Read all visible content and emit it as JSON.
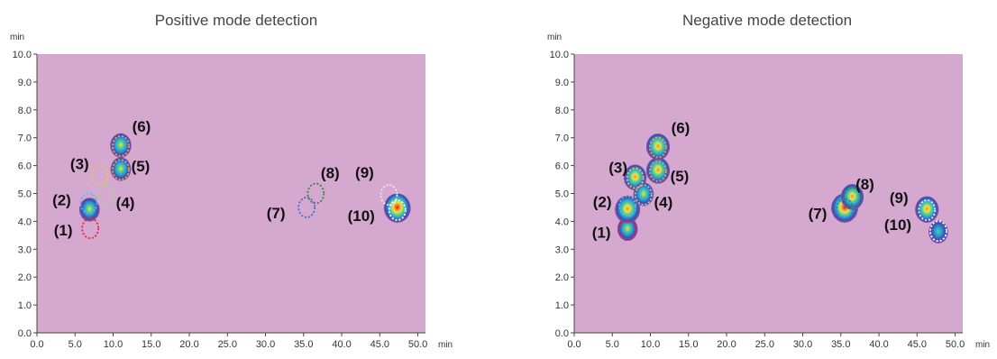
{
  "colors": {
    "background": "#d5a8cf",
    "axis": "#444444",
    "tick_text": "#333333",
    "title_text": "#444444",
    "peak_colormap": [
      "#8a4fa6",
      "#3d4fb0",
      "#2aa0d8",
      "#56d08a",
      "#f2e04a",
      "#f08a2a",
      "#cc1f1f"
    ]
  },
  "chart_data": [
    {
      "type": "heatmap",
      "title": "Positive mode detection",
      "xlabel": "min",
      "ylabel": "min",
      "xlim": [
        0,
        51
      ],
      "ylim": [
        0,
        10
      ],
      "xticks": [
        "0.0",
        "5.0",
        "10.0",
        "15.0",
        "20.0",
        "25.0",
        "30.0",
        "35.0",
        "40.0",
        "45.0",
        "50.0"
      ],
      "yticks": [
        "0.0",
        "1.0",
        "2.0",
        "3.0",
        "4.0",
        "5.0",
        "6.0",
        "7.0",
        "8.0",
        "9.0",
        "10.0"
      ],
      "grid": false,
      "peaks": [
        {
          "x": 6.9,
          "y": 4.4,
          "intensity": 0.6
        },
        {
          "x": 11.0,
          "y": 5.85,
          "intensity": 0.6
        },
        {
          "x": 11.0,
          "y": 6.7,
          "intensity": 0.65
        },
        {
          "x": 47.3,
          "y": 4.45,
          "intensity": 1.0
        }
      ],
      "annotations": [
        {
          "label": "(1)",
          "x": 7.0,
          "y": 3.75,
          "ellipse_color": "#e8262d"
        },
        {
          "label": "(2)",
          "x": 6.8,
          "y": 4.65,
          "ellipse_color": "#5ab7e6"
        },
        {
          "label": "(3)",
          "x": 8.2,
          "y": 5.65,
          "ellipse_color": "#f2c34a"
        },
        {
          "label": "(4)",
          "x": 9.0,
          "y": 4.9,
          "ellipse_color": "#9fd19a"
        },
        {
          "label": "(5)",
          "x": 11.0,
          "y": 5.85,
          "ellipse_color": "#f2a33a"
        },
        {
          "label": "(6)",
          "x": 11.0,
          "y": 6.7,
          "ellipse_color": "#f2a33a"
        },
        {
          "label": "(7)",
          "x": 35.4,
          "y": 4.5,
          "ellipse_color": "#3a6fcf"
        },
        {
          "label": "(8)",
          "x": 36.6,
          "y": 5.0,
          "ellipse_color": "#2f8a3a"
        },
        {
          "label": "(9)",
          "x": 46.2,
          "y": 4.95,
          "ellipse_color": "#eaeaea"
        },
        {
          "label": "(10)",
          "x": 47.3,
          "y": 4.4,
          "ellipse_color": "#ffffff"
        }
      ]
    },
    {
      "type": "heatmap",
      "title": "Negative mode detection",
      "xlabel": "min",
      "ylabel": "min",
      "xlim": [
        0,
        51
      ],
      "ylim": [
        0,
        10
      ],
      "xticks": [
        "0.0",
        "5.0",
        "10.0",
        "15.0",
        "20.0",
        "25.0",
        "30.0",
        "35.0",
        "40.0",
        "45.0",
        "50.0"
      ],
      "yticks": [
        "0.0",
        "1.0",
        "2.0",
        "3.0",
        "4.0",
        "5.0",
        "6.0",
        "7.0",
        "8.0",
        "9.0",
        "10.0"
      ],
      "grid": false,
      "peaks": [
        {
          "x": 7.0,
          "y": 3.7,
          "intensity": 0.6
        },
        {
          "x": 7.0,
          "y": 4.4,
          "intensity": 0.9
        },
        {
          "x": 8.0,
          "y": 5.55,
          "intensity": 0.75
        },
        {
          "x": 9.1,
          "y": 4.95,
          "intensity": 0.6
        },
        {
          "x": 11.0,
          "y": 5.8,
          "intensity": 0.8
        },
        {
          "x": 11.0,
          "y": 6.65,
          "intensity": 0.8
        },
        {
          "x": 35.5,
          "y": 4.45,
          "intensity": 1.0
        },
        {
          "x": 36.5,
          "y": 4.85,
          "intensity": 0.75
        },
        {
          "x": 46.3,
          "y": 4.4,
          "intensity": 0.8
        },
        {
          "x": 47.8,
          "y": 3.6,
          "intensity": 0.55
        }
      ],
      "annotations": [
        {
          "label": "(1)",
          "x": 7.0,
          "y": 3.7,
          "ellipse_color": "#e8262d"
        },
        {
          "label": "(2)",
          "x": 7.0,
          "y": 4.55,
          "ellipse_color": "#5ab7e6"
        },
        {
          "label": "(3)",
          "x": 8.0,
          "y": 5.55,
          "ellipse_color": "#f2c34a"
        },
        {
          "label": "(4)",
          "x": 9.1,
          "y": 4.95,
          "ellipse_color": "#9fd19a"
        },
        {
          "label": "(5)",
          "x": 11.0,
          "y": 5.8,
          "ellipse_color": "#f2a33a"
        },
        {
          "label": "(6)",
          "x": 11.0,
          "y": 6.65,
          "ellipse_color": "#f2a33a"
        },
        {
          "label": "(7)",
          "x": 35.5,
          "y": 4.45,
          "ellipse_color": "#3a6fcf"
        },
        {
          "label": "(8)",
          "x": 36.5,
          "y": 4.85,
          "ellipse_color": "#2f8a3a"
        },
        {
          "label": "(9)",
          "x": 46.3,
          "y": 4.4,
          "ellipse_color": "#eaeaea"
        },
        {
          "label": "(10)",
          "x": 47.8,
          "y": 3.65,
          "ellipse_color": "#ffffff"
        }
      ]
    }
  ]
}
